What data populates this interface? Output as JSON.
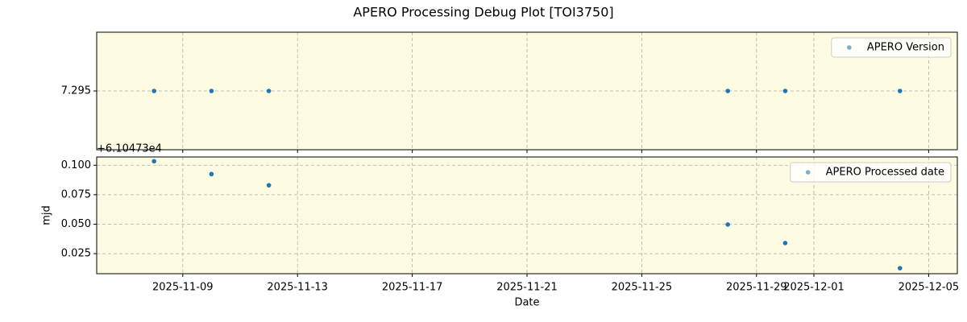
{
  "title": "APERO Processing Debug Plot [TOI3750]",
  "chart_data": [
    {
      "type": "scatter",
      "x": [
        "2025-11-08",
        "2025-11-10",
        "2025-11-12",
        "2025-11-28",
        "2025-11-30",
        "2025-12-04"
      ],
      "series": [
        {
          "name": "APERO Version",
          "color": "#1f77b4",
          "values": [
            7.295,
            7.295,
            7.295,
            7.295,
            7.295,
            7.295
          ]
        }
      ],
      "xlim": [
        "2025-11-06",
        "2025-12-06"
      ],
      "xticks": [
        "2025-11-09",
        "2025-11-13",
        "2025-11-17",
        "2025-11-21",
        "2025-11-25",
        "2025-11-29",
        "2025-12-01",
        "2025-12-05"
      ],
      "ylim": [
        7.294,
        7.296
      ],
      "yticks": [
        7.295
      ],
      "grid": true,
      "legend": "upper right",
      "background": "#fdfbe1"
    },
    {
      "type": "scatter",
      "x": [
        "2025-11-08",
        "2025-11-10",
        "2025-11-12",
        "2025-11-28",
        "2025-11-30",
        "2025-12-04"
      ],
      "series": [
        {
          "name": "APERO Processed date",
          "color": "#1f77b4",
          "values": [
            0.1034,
            0.0925,
            0.083,
            0.0497,
            0.034,
            0.0127
          ]
        }
      ],
      "xlim": [
        "2025-11-06",
        "2025-12-06"
      ],
      "xticks": [
        "2025-11-09",
        "2025-11-13",
        "2025-11-17",
        "2025-11-21",
        "2025-11-25",
        "2025-11-29",
        "2025-12-01",
        "2025-12-05"
      ],
      "ylim": [
        0.008,
        0.107
      ],
      "yticks": [
        {
          "value": 0.1,
          "label": "0.100"
        },
        {
          "value": 0.075,
          "label": "0.075"
        },
        {
          "value": 0.05,
          "label": "0.050"
        },
        {
          "value": 0.025,
          "label": "0.025"
        }
      ],
      "offset_text": "+6.10473e4",
      "ylabel": "mjd",
      "xlabel": "Date",
      "grid": true,
      "legend": "upper right",
      "background": "#fdfbe1"
    }
  ]
}
